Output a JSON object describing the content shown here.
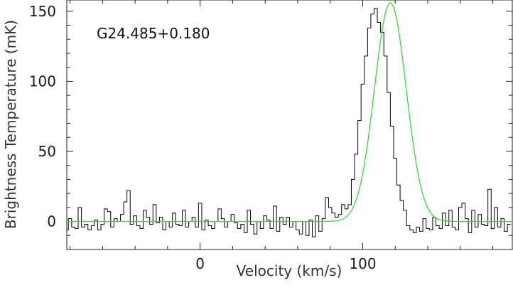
{
  "chart_data": {
    "type": "line",
    "xlabel": "Velocity (km/s)",
    "ylabel": "Brightness Temperature (mK)",
    "annotation": "G24.485+0.180",
    "xlim": [
      -82,
      192
    ],
    "ylim": [
      -20,
      158
    ],
    "xticks": [
      0,
      100
    ],
    "yticks": [
      0,
      50,
      100,
      150
    ],
    "grid": false,
    "series": [
      {
        "style": "step",
        "color": "#000000",
        "x": [
          -82,
          -80,
          -78,
          -76,
          -74,
          -72,
          -70,
          -68,
          -66,
          -64,
          -62,
          -60,
          -58,
          -56,
          -54,
          -52,
          -50,
          -48,
          -46,
          -44,
          -42,
          -40,
          -38,
          -36,
          -34,
          -32,
          -30,
          -28,
          -26,
          -24,
          -22,
          -20,
          -18,
          -16,
          -14,
          -12,
          -10,
          -8,
          -6,
          -4,
          -2,
          0,
          2,
          4,
          6,
          8,
          10,
          12,
          14,
          16,
          18,
          20,
          22,
          24,
          26,
          28,
          30,
          32,
          34,
          36,
          38,
          40,
          42,
          44,
          46,
          48,
          50,
          52,
          54,
          56,
          58,
          60,
          62,
          64,
          66,
          68,
          70,
          72,
          74,
          76,
          78,
          80,
          82,
          84,
          86,
          88,
          90,
          92,
          94,
          96,
          98,
          100,
          102,
          104,
          106,
          108,
          110,
          112,
          114,
          116,
          118,
          120,
          122,
          124,
          126,
          128,
          130,
          132,
          134,
          136,
          138,
          140,
          142,
          144,
          146,
          148,
          150,
          152,
          154,
          156,
          158,
          160,
          162,
          164,
          166,
          168,
          170,
          172,
          174,
          176,
          178,
          180,
          182,
          184,
          186,
          188,
          190
        ],
        "y": [
          -6,
          2,
          -4,
          -5,
          10,
          -4,
          -2,
          -6,
          -3,
          1,
          -6,
          -2,
          9,
          7,
          -4,
          2,
          0,
          5,
          14,
          22,
          -2,
          4,
          -3,
          -5,
          8,
          3,
          -2,
          12,
          -1,
          3,
          -6,
          0,
          -4,
          6,
          -2,
          -3,
          8,
          -4,
          0,
          3,
          -4,
          13,
          -6,
          1,
          -3,
          -5,
          0,
          9,
          2,
          -4,
          0,
          5,
          -1,
          -5,
          -2,
          -8,
          8,
          -2,
          -9,
          0,
          -5,
          4,
          1,
          -5,
          11,
          -7,
          3,
          -2,
          3,
          -4,
          0,
          -6,
          -9,
          0,
          -10,
          1,
          -11,
          4,
          -7,
          2,
          17,
          10,
          6,
          3,
          5,
          12,
          9,
          12,
          30,
          48,
          72,
          98,
          118,
          138,
          148,
          152,
          142,
          135,
          118,
          92,
          68,
          45,
          26,
          15,
          8,
          -3,
          -6,
          -8,
          -4,
          -7,
          2,
          -5,
          -6,
          3,
          -3,
          -5,
          6,
          -3,
          8,
          -4,
          -6,
          10,
          13,
          2,
          -8,
          8,
          -4,
          5,
          -2,
          -3,
          23,
          -5,
          10,
          -4,
          2,
          -7,
          -2
        ]
      },
      {
        "style": "smooth",
        "color": "#33dd33",
        "model": "gaussian",
        "amplitude": 156,
        "center": 117,
        "fwhm": 23,
        "baseline": 0,
        "x_range": [
          -82,
          192
        ]
      }
    ]
  }
}
